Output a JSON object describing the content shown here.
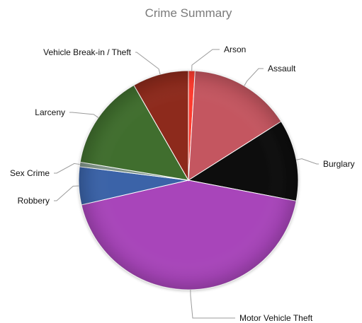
{
  "chart_data": {
    "type": "pie",
    "title": "Crime Summary",
    "categories": [
      "Arson",
      "Assault",
      "Burglary",
      "Motor Vehicle Theft",
      "Robbery",
      "Sex Crime",
      "Larceny",
      "Vehicle Break-in / Theft"
    ],
    "values": [
      1.0,
      15.6,
      12.5,
      45.0,
      5.8,
      0.7,
      14.6,
      8.6
    ],
    "colors": [
      "#ff3b2f",
      "#c45761",
      "#111111",
      "#a844ba",
      "#3b63a8",
      "#7f9488",
      "#3f6e2f",
      "#8d2a1f"
    ],
    "start_angle_deg": -90,
    "legend": "none"
  }
}
